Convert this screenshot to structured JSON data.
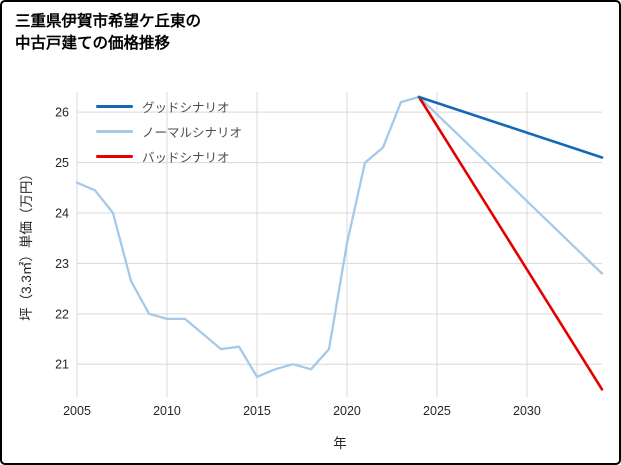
{
  "title": {
    "line1": "三重県伊賀市希望ケ丘東の",
    "line2": "中古戸建ての価格推移"
  },
  "colors": {
    "grid": "#d9d9d9",
    "tick_text": "#262626",
    "legend_text": "#4d4d4d",
    "border": "#000000",
    "background": "#ffffff"
  },
  "chart_data": {
    "type": "line",
    "title": "三重県伊賀市希望ケ丘東の中古戸建ての価格推移",
    "xlabel": "年",
    "ylabel": "坪（3.3㎡）単価（万円）",
    "xlim": [
      2005,
      2034.17
    ],
    "ylim": [
      20.35,
      26.4
    ],
    "xticks": [
      2005,
      2010,
      2015,
      2020,
      2025,
      2030
    ],
    "yticks": [
      21,
      22,
      23,
      24,
      25,
      26
    ],
    "grid": true,
    "legend_position": "upper left",
    "series": [
      {
        "id": "good",
        "name": "グッドシナリオ",
        "color": "#1568b3",
        "width": 2.6,
        "x": [
          2024,
          2034.17
        ],
        "y": [
          26.3,
          25.1
        ]
      },
      {
        "id": "normal",
        "name": "ノーマルシナリオ",
        "color": "#a4c9ea",
        "width": 2.3,
        "x": [
          2005,
          2006,
          2007,
          2008,
          2009,
          2010,
          2011,
          2012,
          2013,
          2014,
          2015,
          2016,
          2017,
          2018,
          2019,
          2020,
          2021,
          2022,
          2023,
          2024,
          2034.17
        ],
        "y": [
          24.6,
          24.45,
          24.0,
          22.65,
          22.0,
          21.9,
          21.9,
          21.6,
          21.3,
          21.35,
          20.75,
          20.9,
          21.0,
          20.9,
          21.3,
          23.4,
          25.0,
          25.3,
          26.2,
          26.3,
          22.8
        ]
      },
      {
        "id": "bad",
        "name": "バッドシナリオ",
        "color": "#e50000",
        "width": 2.6,
        "x": [
          2024,
          2034.17
        ],
        "y": [
          26.3,
          20.5
        ]
      }
    ]
  }
}
